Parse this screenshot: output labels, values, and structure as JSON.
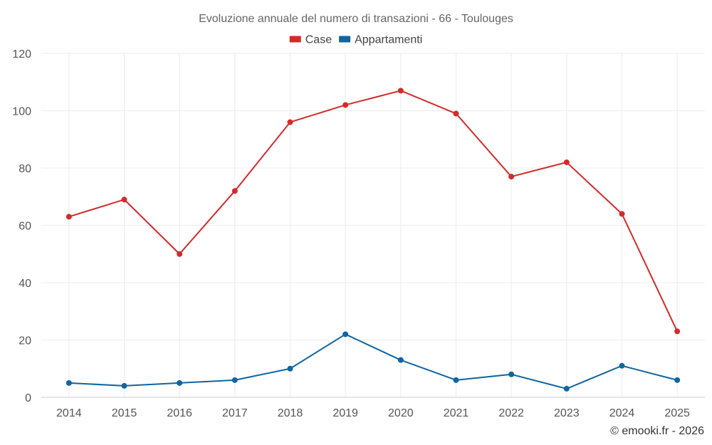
{
  "chart_data": {
    "type": "line",
    "title": "Evoluzione annuale del numero di transazioni - 66 - Toulouges",
    "categories": [
      "2014",
      "2015",
      "2016",
      "2017",
      "2018",
      "2019",
      "2020",
      "2021",
      "2022",
      "2023",
      "2024",
      "2025"
    ],
    "series": [
      {
        "name": "Case",
        "color": "#d42a2a",
        "values": [
          63,
          69,
          50,
          72,
          96,
          102,
          107,
          99,
          77,
          82,
          64,
          23
        ]
      },
      {
        "name": "Appartamenti",
        "color": "#0f65a0",
        "values": [
          5,
          4,
          5,
          6,
          10,
          22,
          13,
          6,
          8,
          3,
          11,
          6
        ]
      }
    ],
    "ylim": [
      0,
      120
    ],
    "yticks": [
      0,
      20,
      40,
      60,
      80,
      100,
      120
    ],
    "xlabel": "",
    "ylabel": "",
    "grid": true,
    "legend": "top-center"
  },
  "credit": "© emooki.fr - 2026"
}
